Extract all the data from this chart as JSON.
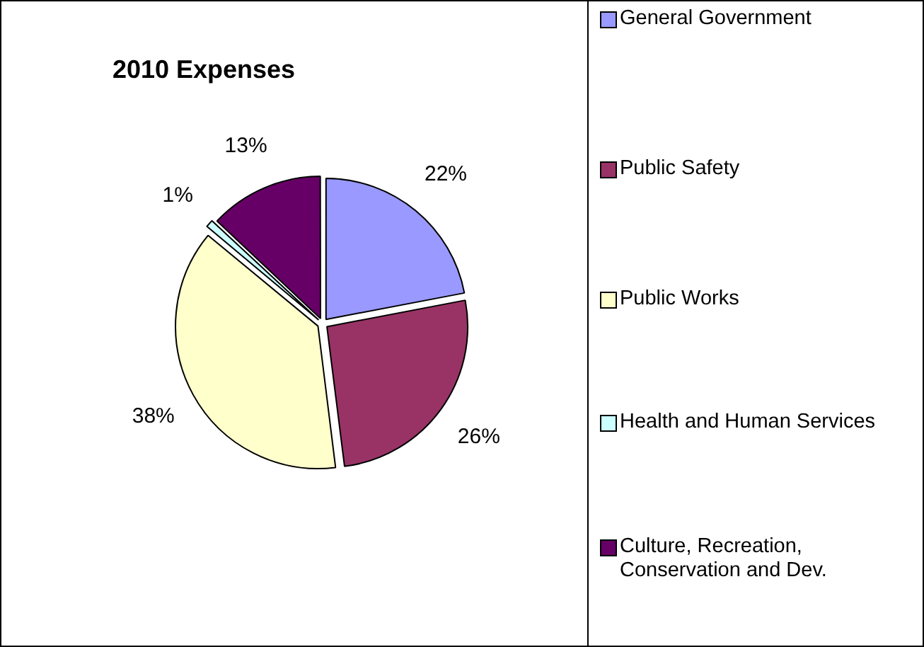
{
  "chart_data": {
    "type": "pie",
    "title": "2010 Expenses",
    "categories": [
      "General Government",
      "Public Safety",
      "Public Works",
      "Health and Human Services",
      "Culture, Recreation, Conservation and Dev."
    ],
    "values": [
      22,
      26,
      38,
      1,
      13
    ],
    "colors": [
      "#9999ff",
      "#993366",
      "#ffffcc",
      "#ccffff",
      "#660066"
    ],
    "value_labels": [
      "22%",
      "26%",
      "38%",
      "1%",
      "13%"
    ],
    "legend": "right"
  }
}
